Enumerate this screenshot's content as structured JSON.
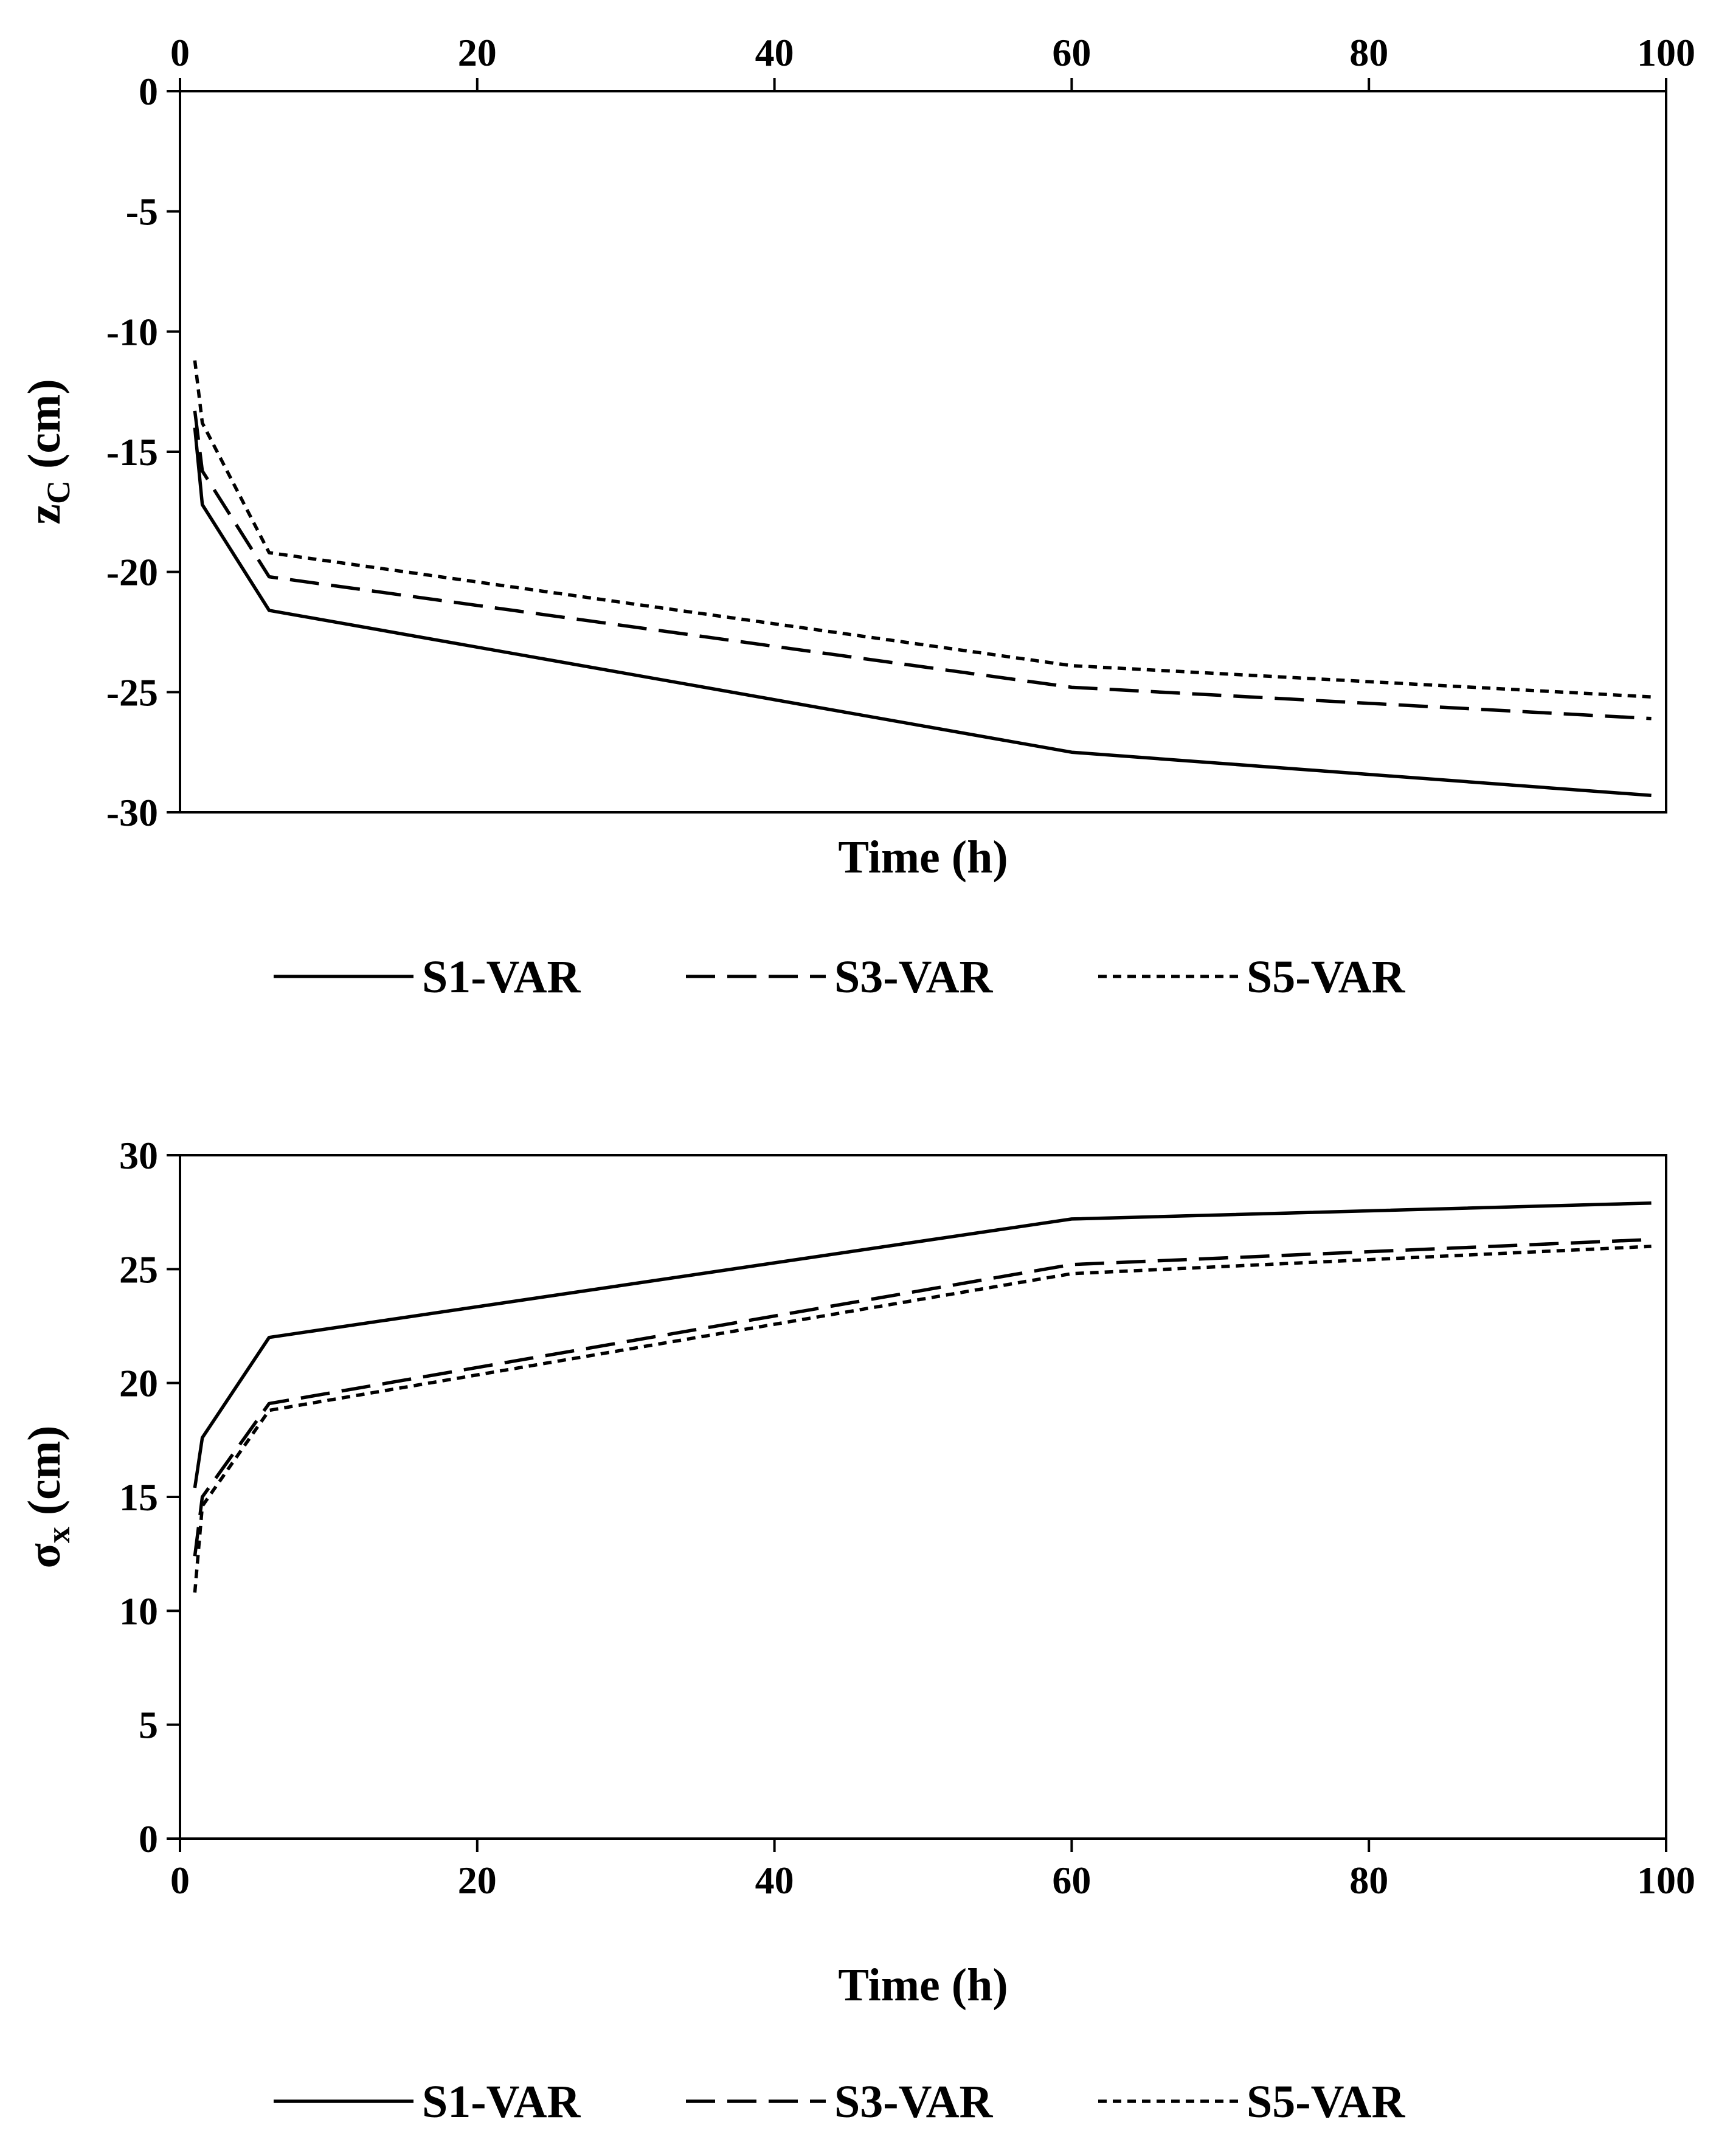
{
  "chart_data": [
    {
      "type": "line",
      "title": "",
      "xlabel": "Time (h)",
      "ylabel": "z",
      "ylabel_sub": "C",
      "ylabel_unit": " (cm)",
      "xlim": [
        0,
        100
      ],
      "ylim": [
        -30,
        0
      ],
      "x_ticks": [
        "0",
        "20",
        "40",
        "60",
        "80",
        "100"
      ],
      "y_ticks": [
        "-30",
        "-25",
        "-20",
        "-15",
        "-10",
        "-5",
        "0"
      ],
      "x_axis_position": "top",
      "grid": false,
      "legend_position": "bottom",
      "series": [
        {
          "name": "S1-VAR",
          "style": "solid",
          "x": [
            1,
            1.5,
            6,
            60,
            99
          ],
          "y": [
            -14.0,
            -17.2,
            -21.6,
            -27.5,
            -29.3
          ]
        },
        {
          "name": "S3-VAR",
          "style": "dashed",
          "x": [
            1,
            1.5,
            6,
            60,
            99
          ],
          "y": [
            -13.3,
            -15.8,
            -20.2,
            -24.8,
            -26.1
          ]
        },
        {
          "name": "S5-VAR",
          "style": "dotted",
          "x": [
            1,
            1.5,
            6,
            60,
            99
          ],
          "y": [
            -11.2,
            -13.8,
            -19.2,
            -23.9,
            -25.2
          ]
        }
      ]
    },
    {
      "type": "line",
      "title": "",
      "xlabel": "Time (h)",
      "ylabel": "σ",
      "ylabel_sub": "x",
      "ylabel_unit": " (cm)",
      "xlim": [
        0,
        100
      ],
      "ylim": [
        0,
        30
      ],
      "x_ticks": [
        "0",
        "20",
        "40",
        "60",
        "80",
        "100"
      ],
      "y_ticks": [
        "0",
        "5",
        "10",
        "15",
        "20",
        "25",
        "30"
      ],
      "x_axis_position": "bottom",
      "grid": false,
      "legend_position": "bottom",
      "series": [
        {
          "name": "S1-VAR",
          "style": "solid",
          "x": [
            1,
            1.5,
            6,
            60,
            99
          ],
          "y": [
            15.4,
            17.6,
            22.0,
            27.2,
            27.9
          ]
        },
        {
          "name": "S3-VAR",
          "style": "dashed",
          "x": [
            1,
            1.5,
            6,
            60,
            99
          ],
          "y": [
            12.4,
            15.0,
            19.1,
            25.2,
            26.3
          ]
        },
        {
          "name": "S5-VAR",
          "style": "dotted",
          "x": [
            1,
            1.5,
            6,
            60,
            99
          ],
          "y": [
            10.8,
            14.6,
            18.8,
            24.8,
            26.0
          ]
        }
      ]
    }
  ],
  "legend": {
    "items": [
      {
        "label": "S1-VAR",
        "style": "solid"
      },
      {
        "label": "S3-VAR",
        "style": "dashed"
      },
      {
        "label": "S5-VAR",
        "style": "dotted"
      }
    ]
  },
  "colors": {
    "line": "#000000",
    "axis": "#000000",
    "background": "#ffffff"
  }
}
